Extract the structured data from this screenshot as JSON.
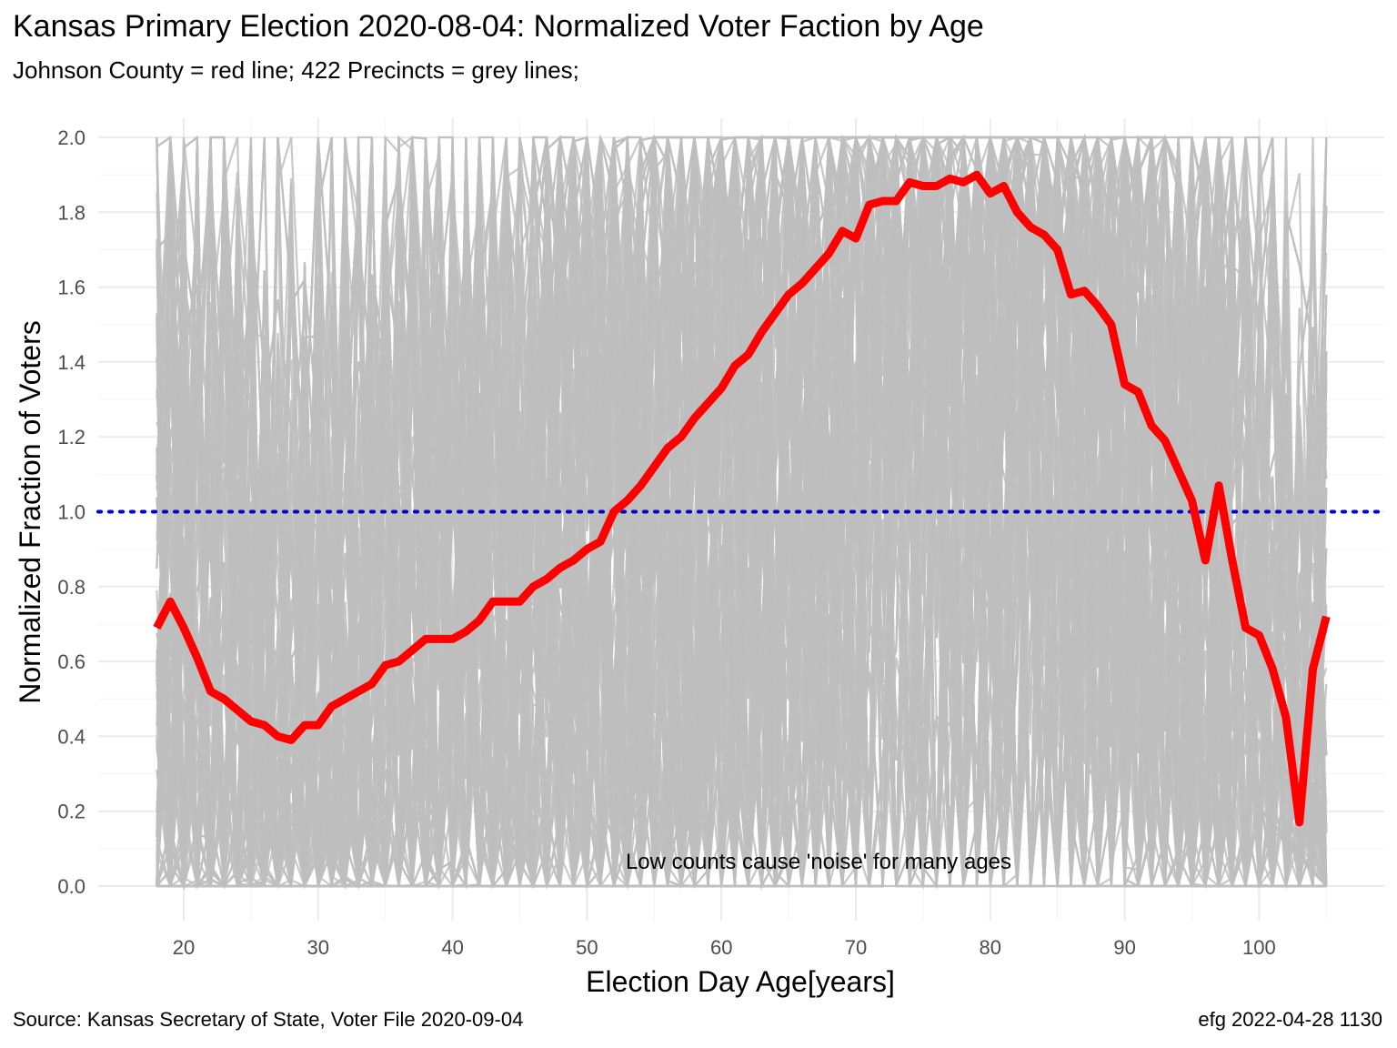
{
  "chart_data": {
    "type": "line",
    "title": "Kansas Primary Election 2020-08-04:  Normalized Voter Faction by Age",
    "subtitle": "Johnson County = red line; 422 Precincts = grey lines;",
    "xlabel": "Election Day Age[years]",
    "ylabel": "Normalized Fraction of Voters",
    "xlim": [
      18,
      105
    ],
    "ylim": [
      0,
      2
    ],
    "x_ticks": [
      "20",
      "30",
      "40",
      "50",
      "60",
      "70",
      "80",
      "90",
      "100"
    ],
    "y_ticks": [
      "0.0",
      "0.2",
      "0.4",
      "0.6",
      "0.8",
      "1.0",
      "1.2",
      "1.4",
      "1.6",
      "1.8",
      "2.0"
    ],
    "grid": true,
    "reference_line": {
      "y": 1.0,
      "style": "dotted",
      "color": "#0000cc"
    },
    "annotation": "Low counts cause 'noise' for many ages",
    "series": [
      {
        "name": "Johnson County",
        "color": "#ff0000",
        "x": [
          18,
          19,
          20,
          21,
          22,
          23,
          24,
          25,
          26,
          27,
          28,
          29,
          30,
          31,
          32,
          33,
          34,
          35,
          36,
          37,
          38,
          39,
          40,
          41,
          42,
          43,
          44,
          45,
          46,
          47,
          48,
          49,
          50,
          51,
          52,
          53,
          54,
          55,
          56,
          57,
          58,
          59,
          60,
          61,
          62,
          63,
          64,
          65,
          66,
          67,
          68,
          69,
          70,
          71,
          72,
          73,
          74,
          75,
          76,
          77,
          78,
          79,
          80,
          81,
          82,
          83,
          84,
          85,
          86,
          87,
          88,
          89,
          90,
          91,
          92,
          93,
          94,
          95,
          96,
          97,
          98,
          99,
          100,
          101,
          102,
          103,
          104,
          105
        ],
        "values": [
          0.69,
          0.76,
          0.69,
          0.61,
          0.52,
          0.5,
          0.47,
          0.44,
          0.43,
          0.4,
          0.39,
          0.43,
          0.43,
          0.48,
          0.5,
          0.52,
          0.54,
          0.59,
          0.6,
          0.63,
          0.66,
          0.66,
          0.66,
          0.68,
          0.71,
          0.76,
          0.76,
          0.76,
          0.8,
          0.82,
          0.85,
          0.87,
          0.9,
          0.92,
          1.0,
          1.03,
          1.07,
          1.12,
          1.17,
          1.2,
          1.25,
          1.29,
          1.33,
          1.39,
          1.42,
          1.48,
          1.53,
          1.58,
          1.61,
          1.65,
          1.69,
          1.75,
          1.73,
          1.82,
          1.83,
          1.83,
          1.88,
          1.87,
          1.87,
          1.89,
          1.88,
          1.9,
          1.85,
          1.87,
          1.8,
          1.76,
          1.74,
          1.7,
          1.58,
          1.59,
          1.55,
          1.5,
          1.34,
          1.32,
          1.23,
          1.19,
          1.11,
          1.03,
          0.87,
          1.07,
          0.87,
          0.69,
          0.67,
          0.58,
          0.45,
          0.17,
          0.58,
          0.72
        ]
      },
      {
        "name": "422 Precincts",
        "color": "#bebebe",
        "note_values": "Dense band of 422 noisy precinct lines spanning roughly 0.0-2.0 for ages 18-105"
      }
    ]
  },
  "source": "Source:  Kansas Secretary of State, Voter File  2020-09-04",
  "credit": "efg 2022-04-28 1130"
}
